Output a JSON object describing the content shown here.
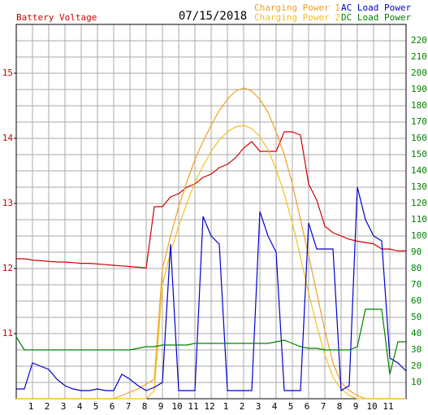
{
  "chart_data": {
    "type": "line",
    "title": "07/15/2018",
    "x": [
      0,
      0.5,
      1,
      1.5,
      2,
      2.5,
      3,
      3.5,
      4,
      4.5,
      5,
      5.5,
      6,
      6.5,
      7,
      7.5,
      8,
      8.5,
      9,
      9.5,
      10,
      10.5,
      11,
      11.5,
      12,
      12.5,
      13,
      13.5,
      14,
      14.5,
      15,
      15.5,
      16,
      16.5,
      17,
      17.5,
      18,
      18.5,
      19,
      19.5,
      20,
      20.5,
      21,
      21.5,
      22,
      22.5,
      23,
      23.5,
      24
    ],
    "xlim": [
      0,
      24
    ],
    "xticks": [
      1,
      2,
      3,
      4,
      5,
      6,
      7,
      8,
      9,
      10,
      11,
      12,
      {
        "value": 13,
        "label": "1"
      },
      {
        "value": 14,
        "label": "2"
      },
      {
        "value": 15,
        "label": "3"
      },
      {
        "value": 16,
        "label": "4"
      },
      {
        "value": 17,
        "label": "5"
      },
      {
        "value": 18,
        "label": "6"
      },
      {
        "value": 19,
        "label": "7"
      },
      {
        "value": 20,
        "label": "8"
      },
      {
        "value": 21,
        "label": "9"
      },
      {
        "value": 22,
        "label": "10"
      },
      {
        "value": 23,
        "label": "11"
      }
    ],
    "ylim": [
      10,
      15.75
    ],
    "yticks": [
      11,
      12,
      13,
      14,
      15
    ],
    "y2lim": [
      0,
      230
    ],
    "y2ticks": [
      10,
      20,
      30,
      40,
      50,
      60,
      70,
      80,
      90,
      100,
      110,
      120,
      130,
      140,
      150,
      160,
      170,
      180,
      190,
      200,
      210,
      220
    ],
    "grid": true,
    "legend": "top-right",
    "series": [
      {
        "name": "Battery Voltage",
        "color": "#d00000",
        "axis": "y",
        "values": [
          12.15,
          12.15,
          12.13,
          12.12,
          12.11,
          12.1,
          12.1,
          12.09,
          12.08,
          12.08,
          12.07,
          12.06,
          12.05,
          12.04,
          12.03,
          12.02,
          12.01,
          12.95,
          12.95,
          13.1,
          13.15,
          13.25,
          13.3,
          13.4,
          13.45,
          13.55,
          13.6,
          13.7,
          13.85,
          13.95,
          13.8,
          13.8,
          13.8,
          14.1,
          14.1,
          14.05,
          13.3,
          13.05,
          12.65,
          12.55,
          12.5,
          12.45,
          12.42,
          12.4,
          12.38,
          12.3,
          12.3,
          12.27,
          12.27
        ]
      },
      {
        "name": "Charging Power 1",
        "color": "#f0a020",
        "axis": "y2",
        "values": [
          0,
          0,
          0,
          0,
          0,
          0,
          0,
          0,
          0,
          0,
          0,
          0,
          0,
          2,
          4,
          6,
          9,
          12,
          80,
          100,
          118,
          133,
          147,
          158,
          168,
          177,
          184,
          189,
          191,
          189,
          184,
          176,
          164,
          150,
          132,
          110,
          88,
          65,
          42,
          22,
          10,
          5,
          2,
          0,
          0,
          0,
          0,
          0,
          0
        ]
      },
      {
        "name": "Charging Power 2",
        "color": "#f0c020",
        "axis": "y2",
        "values": [
          0,
          0,
          0,
          0,
          0,
          0,
          0,
          0,
          0,
          0,
          0,
          0,
          0,
          0,
          0,
          0,
          0,
          5,
          70,
          90,
          106,
          120,
          133,
          143,
          152,
          159,
          164,
          167,
          168,
          166,
          161,
          153,
          141,
          126,
          108,
          87,
          65,
          45,
          27,
          13,
          6,
          2,
          0,
          0,
          0,
          0,
          0,
          0,
          0
        ]
      },
      {
        "name": "AC Load Power",
        "color": "#0000cc",
        "axis": "y2",
        "values": [
          6,
          6,
          22,
          20,
          18,
          12,
          8,
          6,
          5,
          5,
          6,
          5,
          5,
          15,
          12,
          8,
          5,
          7,
          10,
          95,
          5,
          5,
          5,
          112,
          100,
          95,
          5,
          5,
          5,
          5,
          115,
          100,
          90,
          5,
          5,
          5,
          108,
          92,
          92,
          92,
          5,
          8,
          130,
          110,
          100,
          97,
          25,
          22,
          17
        ]
      },
      {
        "name": "DC Load Power",
        "color": "#008000",
        "axis": "y2",
        "values": [
          38,
          30,
          30,
          30,
          30,
          30,
          30,
          30,
          30,
          30,
          30,
          30,
          30,
          30,
          30,
          31,
          32,
          32,
          33,
          33,
          33,
          33,
          34,
          34,
          34,
          34,
          34,
          34,
          34,
          34,
          34,
          34,
          35,
          36,
          34,
          32,
          31,
          31,
          30,
          30,
          30,
          30,
          32,
          55,
          55,
          55,
          15,
          35,
          35
        ]
      }
    ]
  }
}
